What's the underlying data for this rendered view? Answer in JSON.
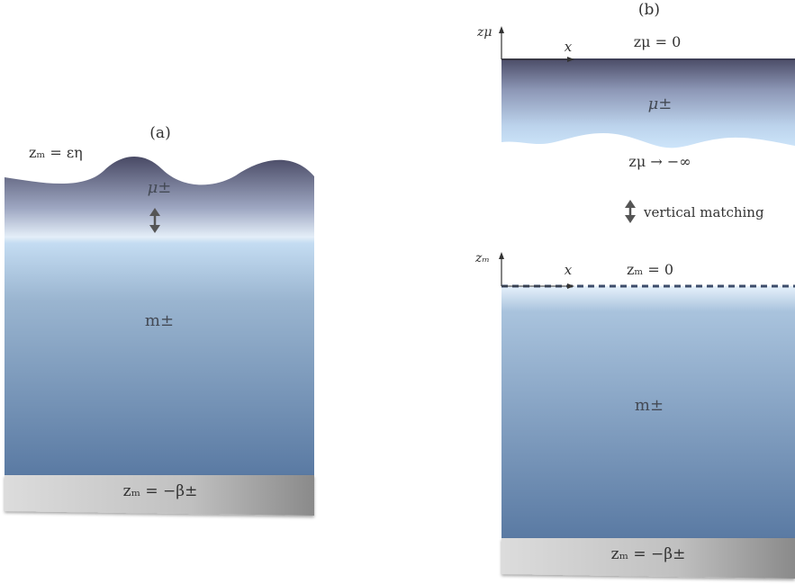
{
  "panel_a": {
    "caption": "(a)",
    "surface_label": "zₘ = εη",
    "upper_layer_label": "μ±",
    "lower_layer_label": "m±",
    "bottom_label": "zₘ = −β±"
  },
  "panel_b": {
    "caption": "(b)",
    "upper_axis_label": "zμ",
    "upper_x_label": "x",
    "upper_surface_label": "zμ = 0",
    "upper_layer_label": "μ±",
    "upper_limit_label": "zμ → −∞",
    "matching_label": "vertical matching",
    "lower_axis_label": "zₘ",
    "lower_x_label": "x",
    "lower_surface_label": "zₘ = 0",
    "lower_layer_label": "m±",
    "bottom_label": "zₘ = −β±"
  },
  "colors": {
    "surface_dark": "#4a4b66",
    "surface_light": "#c8e2f8",
    "deep_water": "#5a7aa3",
    "bed_light": "#d8d8d8",
    "bed_dark": "#8f8f8f",
    "arrow": "#555555",
    "dashed_line": "#3d4d6b"
  },
  "icons": {
    "matching": "double-arrow-icon"
  }
}
